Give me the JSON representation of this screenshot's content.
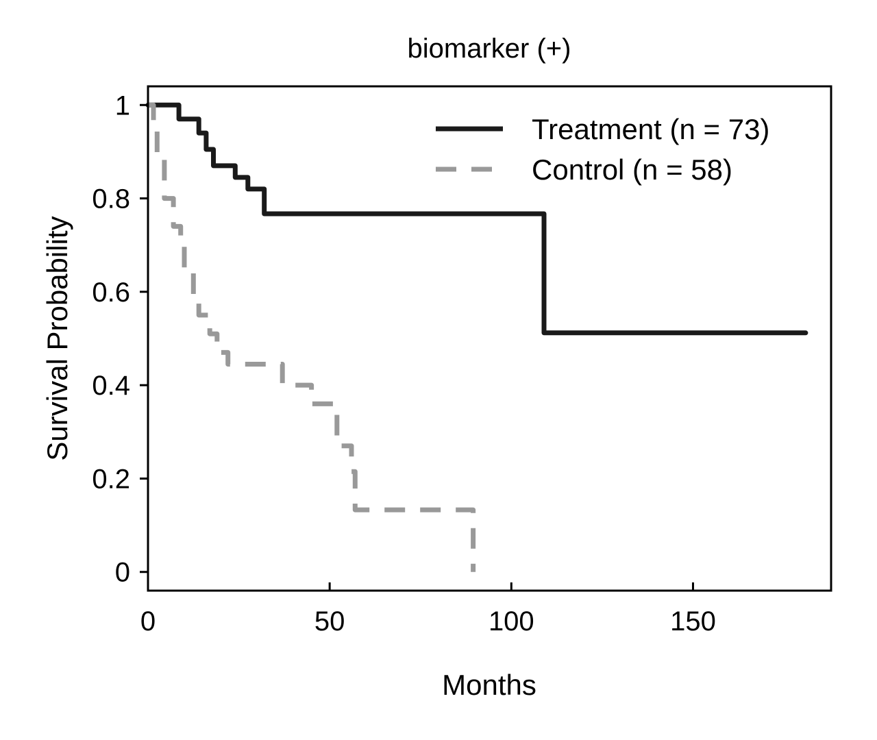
{
  "chart_data": {
    "type": "line",
    "subtype": "kaplan-meier step",
    "title": "biomarker (+)",
    "xlabel": "Months",
    "ylabel": "Survival Probability",
    "xlim": [
      0,
      188
    ],
    "ylim": [
      -0.04,
      1.04
    ],
    "xticks": [
      0,
      50,
      100,
      150
    ],
    "xtick_labels": [
      "0",
      "50",
      "100",
      "150"
    ],
    "yticks": [
      0,
      0.2,
      0.4,
      0.6,
      0.8,
      1
    ],
    "ytick_labels": [
      "0",
      "0.2",
      "0.4",
      "0.6",
      "0.8",
      "1"
    ],
    "grid": false,
    "legend_position": "top-right",
    "series": [
      {
        "name": "Treatment (n = 73)",
        "color": "#1a1a1a",
        "style": "solid",
        "x": [
          0,
          8.5,
          14,
          16,
          18,
          24,
          27.5,
          32,
          109,
          181
        ],
        "y": [
          1.0,
          0.97,
          0.94,
          0.905,
          0.87,
          0.845,
          0.82,
          0.767,
          0.512,
          0.512
        ]
      },
      {
        "name": "Control (n = 58)",
        "color": "#999999",
        "style": "dashed",
        "x": [
          0,
          1.5,
          2.5,
          4.5,
          7,
          9,
          10,
          12.5,
          14,
          17,
          19,
          22,
          35,
          37,
          45,
          52,
          56,
          57,
          88.5,
          89.5
        ],
        "y": [
          1.0,
          0.96,
          0.89,
          0.8,
          0.74,
          0.7,
          0.65,
          0.59,
          0.55,
          0.51,
          0.47,
          0.445,
          0.445,
          0.4,
          0.36,
          0.27,
          0.215,
          0.133,
          0.133,
          0.0
        ]
      }
    ]
  }
}
